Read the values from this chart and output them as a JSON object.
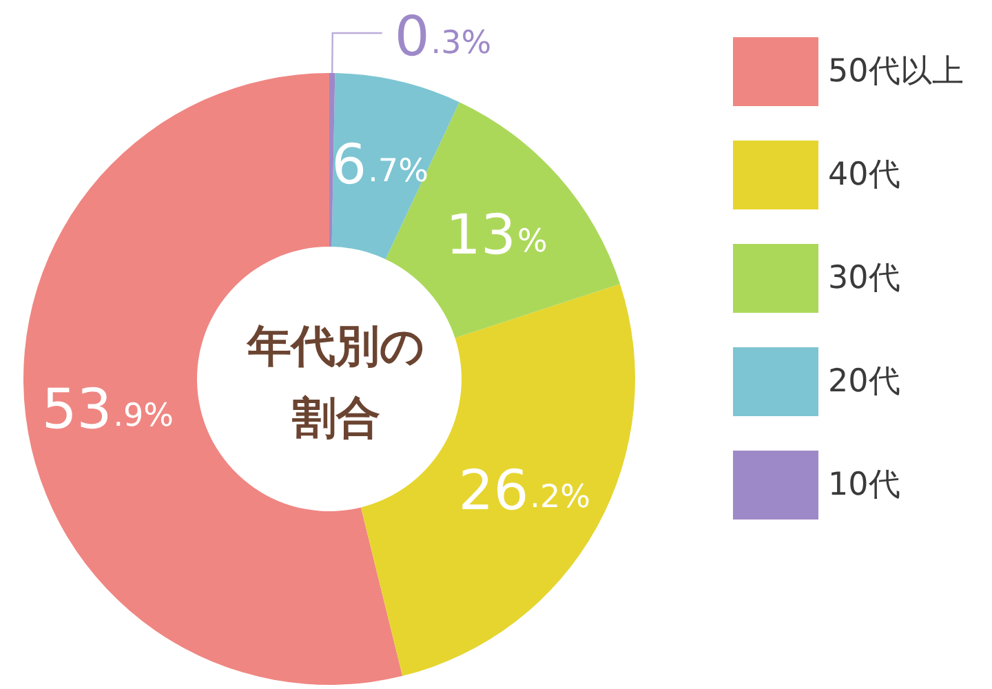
{
  "chart_data": {
    "type": "donut",
    "title": "年代別の割合",
    "categories": [
      "50代以上",
      "40代",
      "30代",
      "20代",
      "10代"
    ],
    "values": [
      53.9,
      26.2,
      13,
      6.7,
      0.3
    ],
    "value_labels": [
      "53.9%",
      "26.2%",
      "13%",
      "6.7%",
      "0.3%"
    ],
    "colors": [
      "#ef8682",
      "#e6d52f",
      "#acd85a",
      "#7dc5d3",
      "#9e89c8"
    ],
    "legend": "top right"
  }
}
